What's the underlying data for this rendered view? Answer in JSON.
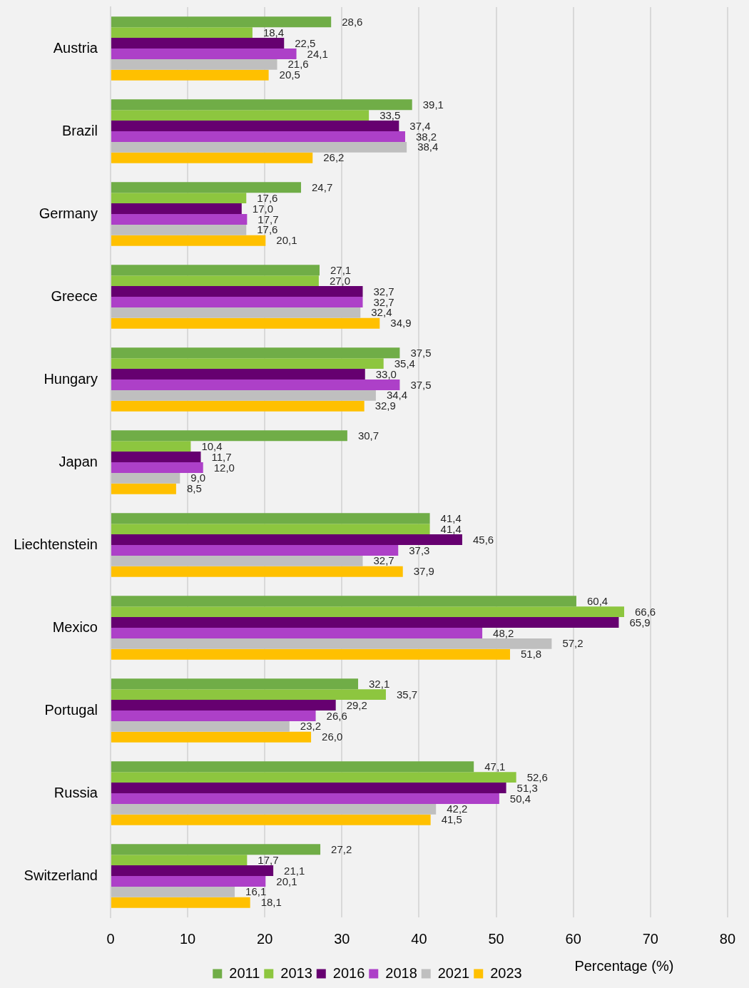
{
  "chart_data": {
    "type": "bar",
    "orientation": "horizontal",
    "xlabel": "Percentage (%)",
    "categories": [
      "Austria",
      "Brazil",
      "Germany",
      "Greece",
      "Hungary",
      "Japan",
      "Liechtenstein",
      "Mexico",
      "Portugal",
      "Russia",
      "Switzerland"
    ],
    "series": [
      {
        "name": "2011",
        "color": "#70ad47",
        "values": [
          28.6,
          39.1,
          24.7,
          27.1,
          37.5,
          30.7,
          41.4,
          60.4,
          32.1,
          47.1,
          27.2
        ],
        "value_labels": [
          "28,6",
          "39,1",
          "24,7",
          "27,1",
          "37,5",
          "30,7",
          "41,4",
          "60,4",
          "32,1",
          "47,1",
          "27,2"
        ]
      },
      {
        "name": "2013",
        "color": "#8dc63f",
        "values": [
          18.4,
          33.5,
          17.6,
          27.0,
          35.4,
          10.4,
          41.4,
          66.6,
          35.7,
          52.6,
          17.7
        ],
        "value_labels": [
          "18,4",
          "33,5",
          "17,6",
          "27,0",
          "35,4",
          "10,4",
          "41,4",
          "66,6",
          "35,7",
          "52,6",
          "17,7"
        ]
      },
      {
        "name": "2016",
        "color": "#660070",
        "values": [
          22.5,
          37.4,
          17.0,
          32.7,
          33.0,
          11.7,
          45.6,
          65.9,
          29.2,
          51.3,
          21.1
        ],
        "value_labels": [
          "22,5",
          "37,4",
          "17,0",
          "32,7",
          "33,0",
          "11,7",
          "45,6",
          "65,9",
          "29,2",
          "51,3",
          "21,1"
        ]
      },
      {
        "name": "2018",
        "color": "#ad40c8",
        "values": [
          24.1,
          38.2,
          17.7,
          32.7,
          37.5,
          12.0,
          37.3,
          48.2,
          26.6,
          50.4,
          20.1
        ],
        "value_labels": [
          "24,1",
          "38,2",
          "17,7",
          "32,7",
          "37,5",
          "12,0",
          "37,3",
          "48,2",
          "26,6",
          "50,4",
          "20,1"
        ]
      },
      {
        "name": "2021",
        "color": "#bfbfbf",
        "values": [
          21.6,
          38.4,
          17.6,
          32.4,
          34.4,
          9.0,
          32.7,
          57.2,
          23.2,
          42.2,
          16.1
        ],
        "value_labels": [
          "21,6",
          "38,4",
          "17,6",
          "32,4",
          "34,4",
          "9,0",
          "32,7",
          "57,2",
          "23,2",
          "42,2",
          "16,1"
        ]
      },
      {
        "name": "2023",
        "color": "#ffc000",
        "values": [
          20.5,
          26.2,
          20.1,
          34.9,
          32.9,
          8.5,
          37.9,
          51.8,
          26.0,
          41.5,
          18.1
        ],
        "value_labels": [
          "20,5",
          "26,2",
          "20,1",
          "34,9",
          "32,9",
          "8,5",
          "37,9",
          "51,8",
          "26,0",
          "41,5",
          "18,1"
        ]
      }
    ],
    "xlim": [
      0,
      80
    ],
    "xticks": [
      0,
      10,
      20,
      30,
      40,
      50,
      60,
      70,
      80
    ],
    "grid": "x",
    "legend": "bottom"
  }
}
